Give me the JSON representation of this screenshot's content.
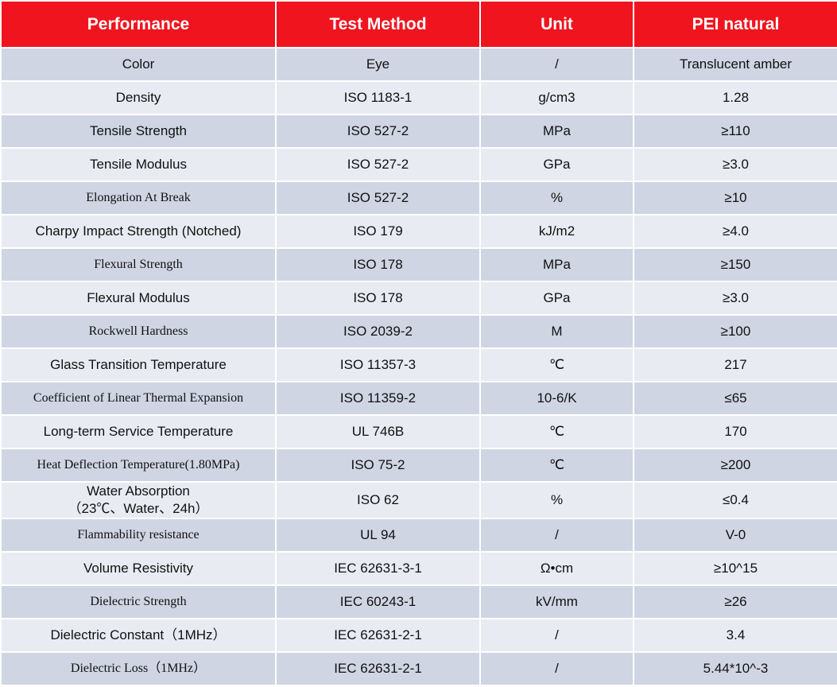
{
  "table": {
    "header": [
      "Performance",
      "Test Method",
      "Unit",
      "PEI natural"
    ],
    "rows": [
      [
        "Color",
        "Eye",
        "/",
        "Translucent amber"
      ],
      [
        "Density",
        "ISO 1183-1",
        "g/cm3",
        "1.28"
      ],
      [
        "Tensile Strength",
        "ISO 527-2",
        "MPa",
        "≥110"
      ],
      [
        "Tensile Modulus",
        "ISO 527-2",
        "GPa",
        "≥3.0"
      ],
      [
        "Elongation At Break",
        "ISO 527-2",
        "%",
        "≥10"
      ],
      [
        "Charpy Impact Strength (Notched)",
        "ISO 179",
        "kJ/m2",
        "≥4.0"
      ],
      [
        "Flexural Strength",
        "ISO 178",
        "MPa",
        "≥150"
      ],
      [
        "Flexural Modulus",
        "ISO 178",
        "GPa",
        "≥3.0"
      ],
      [
        "Rockwell Hardness",
        "ISO 2039-2",
        "M",
        "≥100"
      ],
      [
        "Glass Transition Temperature",
        "ISO 11357-3",
        "℃",
        "217"
      ],
      [
        "Coefficient of Linear Thermal Expansion",
        "ISO 11359-2",
        "10-6/K",
        "≤65"
      ],
      [
        "Long-term Service Temperature",
        "UL 746B",
        "℃",
        "170"
      ],
      [
        "Heat Deflection Temperature(1.80MPa)",
        "ISO 75-2",
        "℃",
        "≥200"
      ],
      [
        "Water Absorption\n（23℃、Water、24h）",
        "ISO 62",
        "%",
        "≤0.4"
      ],
      [
        "Flammability resistance",
        "UL 94",
        "/",
        "V-0"
      ],
      [
        "Volume Resistivity",
        "IEC 62631-3-1",
        "Ω•cm",
        "≥10^15"
      ],
      [
        "Dielectric Strength",
        "IEC 60243-1",
        "kV/mm",
        "≥26"
      ],
      [
        "Dielectric Constant（1MHz）",
        "IEC 62631-2-1",
        "/",
        "3.4"
      ],
      [
        "Dielectric Loss（1MHz）",
        "IEC 62631-2-1",
        "/",
        "5.44*10^-3"
      ]
    ]
  }
}
